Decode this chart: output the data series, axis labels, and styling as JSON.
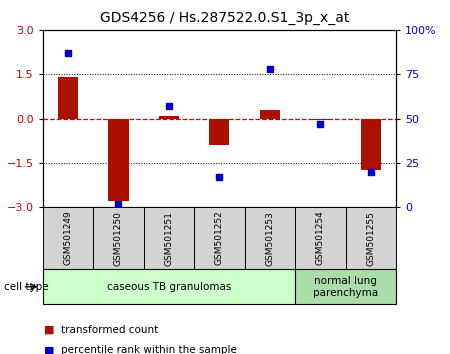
{
  "title": "GDS4256 / Hs.287522.0.S1_3p_x_at",
  "samples": [
    "GSM501249",
    "GSM501250",
    "GSM501251",
    "GSM501252",
    "GSM501253",
    "GSM501254",
    "GSM501255"
  ],
  "transformed_count": [
    1.4,
    -2.8,
    0.1,
    -0.9,
    0.3,
    -0.05,
    -1.75
  ],
  "percentile_rank": [
    87,
    2,
    57,
    17,
    78,
    47,
    20
  ],
  "ylim_left": [
    -3,
    3
  ],
  "ylim_right": [
    0,
    100
  ],
  "yticks_left": [
    -3,
    -1.5,
    0,
    1.5,
    3
  ],
  "yticks_right": [
    0,
    25,
    50,
    75,
    100
  ],
  "ytick_labels_right": [
    "0",
    "25",
    "50",
    "75",
    "100%"
  ],
  "hlines": [
    1.5,
    -1.5
  ],
  "bar_color": "#aa1100",
  "scatter_color": "#0000cc",
  "zero_line_color": "#cc0000",
  "cell_type_groups": [
    {
      "label": "caseous TB granulomas",
      "samples": [
        0,
        1,
        2,
        3,
        4
      ],
      "color": "#ccffcc"
    },
    {
      "label": "normal lung\nparenchyma",
      "samples": [
        5,
        6
      ],
      "color": "#aaddaa"
    }
  ],
  "cell_type_label": "cell type",
  "legend_items": [
    {
      "color": "#aa1100",
      "label": "transformed count"
    },
    {
      "color": "#0000cc",
      "label": "percentile rank within the sample"
    }
  ],
  "title_fontsize": 10,
  "tick_fontsize": 8,
  "bar_width": 0.4
}
